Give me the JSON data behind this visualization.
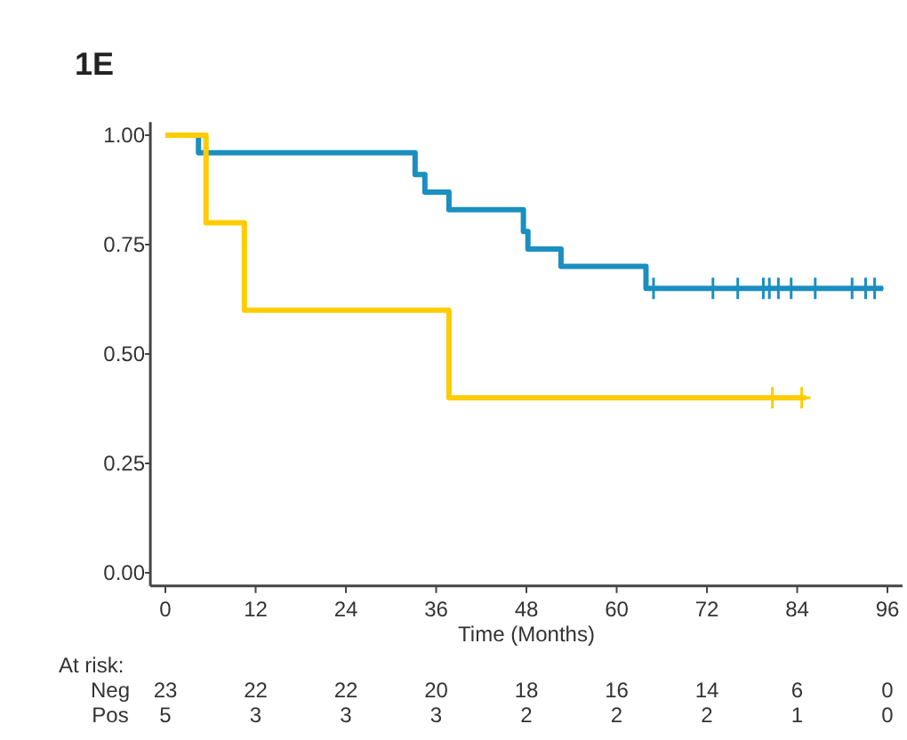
{
  "chart_data": {
    "type": "step",
    "title": "1E",
    "xlabel": "Time (Months)",
    "xlim": [
      -2,
      98
    ],
    "xticks": [
      0,
      12,
      24,
      36,
      48,
      60,
      72,
      84,
      96
    ],
    "ylim": [
      -0.03,
      1.03
    ],
    "yticks": [
      {
        "value": 0,
        "label": "0.00"
      },
      {
        "value": 0.25,
        "label": "0.25"
      },
      {
        "value": 0.5,
        "label": "0.50"
      },
      {
        "value": 0.75,
        "label": "0.75"
      },
      {
        "value": 1,
        "label": "1.00"
      }
    ],
    "grid": false,
    "series": [
      {
        "color": "#1a8fc0",
        "x": [
          0,
          4.4,
          33.2,
          34.5,
          37.7,
          47.6,
          48.2,
          52.6,
          63.9,
          95.4
        ],
        "values": [
          1,
          0.96,
          0.91,
          0.87,
          0.83,
          0.78,
          0.74,
          0.7,
          0.65,
          0.65
        ]
      },
      {
        "color": "#ffcc00",
        "x": [
          0,
          5.4,
          10.5,
          37.7,
          85.2
        ],
        "values": [
          1,
          0.8,
          0.6,
          0.4,
          0.4
        ]
      },
      {
        "type": "scatter",
        "marker": "cross",
        "color": "#1a8fc0",
        "x": [
          64.9,
          72.8,
          76.1,
          79.5,
          80.3,
          81.5,
          83.2,
          86.4,
          91.3,
          93.1,
          94.3
        ],
        "values": [
          0.65,
          0.65,
          0.65,
          0.65,
          0.65,
          0.65,
          0.65,
          0.65,
          0.65,
          0.65,
          0.65
        ]
      },
      {
        "type": "scatter",
        "marker": "cross",
        "color": "#ffcc00",
        "x": [
          80.7,
          84.6
        ],
        "values": [
          0.4,
          0.4
        ]
      }
    ],
    "annotations": [
      "At risk:",
      "Neg 23 22 22 20 18 16 14 6 0",
      "Pos 5 3 3 3 2 2 2 1 0"
    ]
  }
}
